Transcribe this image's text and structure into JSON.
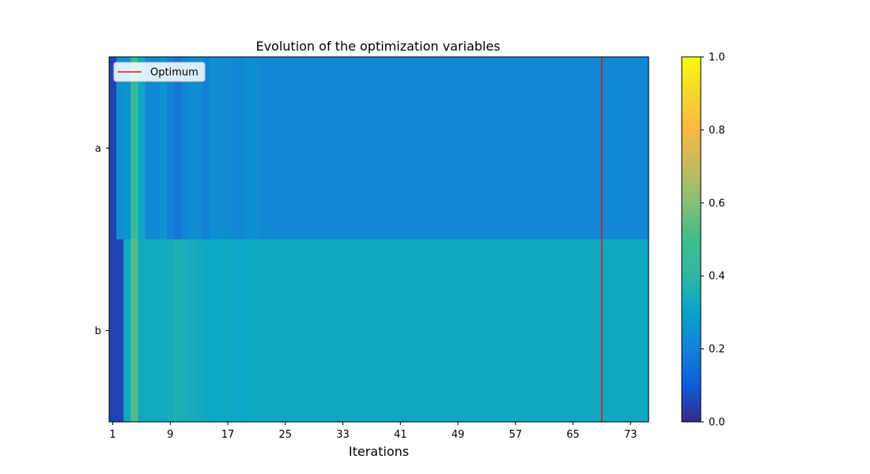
{
  "chart_data": {
    "type": "heatmap",
    "title": "Evolution of the optimization variables",
    "xlabel": "Iterations",
    "ylabel": "",
    "rows": [
      "a",
      "b"
    ],
    "iterations": 75,
    "xticks": [
      1,
      9,
      17,
      25,
      33,
      41,
      49,
      57,
      65,
      73
    ],
    "values": {
      "a": [
        0.05,
        0.24,
        0.25,
        0.45,
        0.32,
        0.22,
        0.22,
        0.26,
        0.2,
        0.17,
        0.21,
        0.23,
        0.23,
        0.2,
        0.24,
        0.23,
        0.23,
        0.22,
        0.22,
        0.24,
        0.23,
        0.22,
        0.22,
        0.22,
        0.22,
        0.22,
        0.22,
        0.22,
        0.22,
        0.22,
        0.22,
        0.22,
        0.22,
        0.22,
        0.22,
        0.22,
        0.22,
        0.22,
        0.22,
        0.22,
        0.22,
        0.22,
        0.22,
        0.22,
        0.22,
        0.22,
        0.22,
        0.22,
        0.22,
        0.22,
        0.22,
        0.22,
        0.22,
        0.22,
        0.22,
        0.22,
        0.22,
        0.22,
        0.22,
        0.22,
        0.22,
        0.22,
        0.22,
        0.22,
        0.22,
        0.22,
        0.22,
        0.22,
        0.22,
        0.22,
        0.22,
        0.22,
        0.22,
        0.22,
        0.22
      ],
      "b": [
        0.05,
        0.05,
        0.33,
        0.53,
        0.33,
        0.33,
        0.33,
        0.33,
        0.34,
        0.36,
        0.35,
        0.34,
        0.33,
        0.32,
        0.31,
        0.32,
        0.32,
        0.32,
        0.31,
        0.32,
        0.32,
        0.32,
        0.32,
        0.32,
        0.32,
        0.32,
        0.32,
        0.32,
        0.32,
        0.32,
        0.32,
        0.32,
        0.32,
        0.32,
        0.32,
        0.32,
        0.32,
        0.32,
        0.32,
        0.32,
        0.32,
        0.32,
        0.32,
        0.32,
        0.32,
        0.32,
        0.32,
        0.32,
        0.32,
        0.32,
        0.32,
        0.32,
        0.32,
        0.32,
        0.32,
        0.32,
        0.32,
        0.32,
        0.32,
        0.32,
        0.32,
        0.32,
        0.32,
        0.32,
        0.32,
        0.32,
        0.32,
        0.32,
        0.32,
        0.32,
        0.32,
        0.32,
        0.32,
        0.32,
        0.32
      ]
    },
    "optimum_iteration": 69,
    "optimum_color": "#e8141c",
    "legend": {
      "label": "Optimum",
      "placement": "top-left"
    },
    "colorbar": {
      "range": [
        0,
        1
      ],
      "ticks": [
        "0.0",
        "0.2",
        "0.4",
        "0.6",
        "0.8",
        "1.0"
      ],
      "colormap": "parula"
    }
  }
}
